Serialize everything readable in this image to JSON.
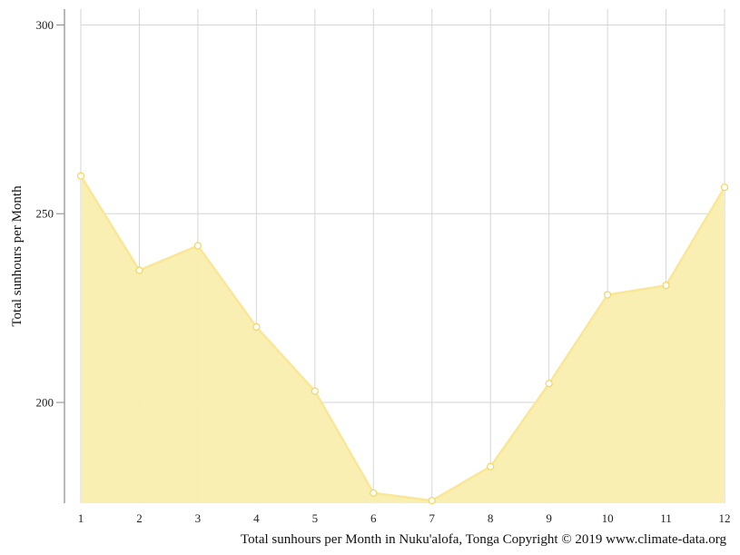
{
  "chart_data": {
    "type": "area",
    "x": [
      1,
      2,
      3,
      4,
      5,
      6,
      7,
      8,
      9,
      10,
      11,
      12
    ],
    "values": [
      260,
      235,
      241.5,
      220,
      203,
      176,
      174,
      183,
      205,
      228.5,
      231,
      257
    ],
    "ylabel": "Total sunhours per Month",
    "caption": "Total sunhours per Month in Nuku'alofa, Tonga Copyright © 2019 www.climate-data.org",
    "y_ticks": [
      200,
      250,
      300
    ],
    "ylim": [
      173.3,
      304.2
    ],
    "grid": true,
    "colors": {
      "fill": "#faeeae",
      "line": "#fae796",
      "marker_stroke": "#f2d966",
      "marker_fill": "#ffffff"
    }
  }
}
